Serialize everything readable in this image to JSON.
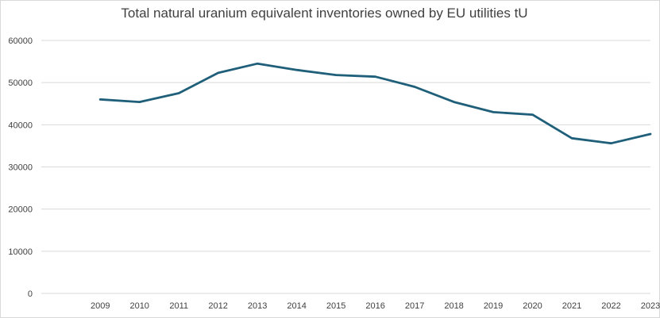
{
  "chart_data": {
    "type": "line",
    "title": "Total natural uranium equivalent inventories owned by EU utilities tU",
    "xlabel": "",
    "ylabel": "",
    "x": [
      "2009",
      "2010",
      "2011",
      "2012",
      "2013",
      "2014",
      "2015",
      "2016",
      "2017",
      "2018",
      "2019",
      "2020",
      "2021",
      "2022",
      "2023"
    ],
    "series": [
      {
        "values": [
          46000,
          45400,
          47500,
          52300,
          54500,
          53000,
          51800,
          51400,
          49000,
          45400,
          43000,
          42400,
          36800,
          35600,
          37800
        ]
      }
    ],
    "ylim": [
      0,
      60000
    ],
    "yticks": [
      0,
      10000,
      20000,
      30000,
      40000,
      50000,
      60000
    ],
    "grid": true,
    "legend": "none",
    "colors": {
      "line": "#1f5f7a",
      "grid": "#d9d9d9",
      "text": "#404040"
    }
  }
}
